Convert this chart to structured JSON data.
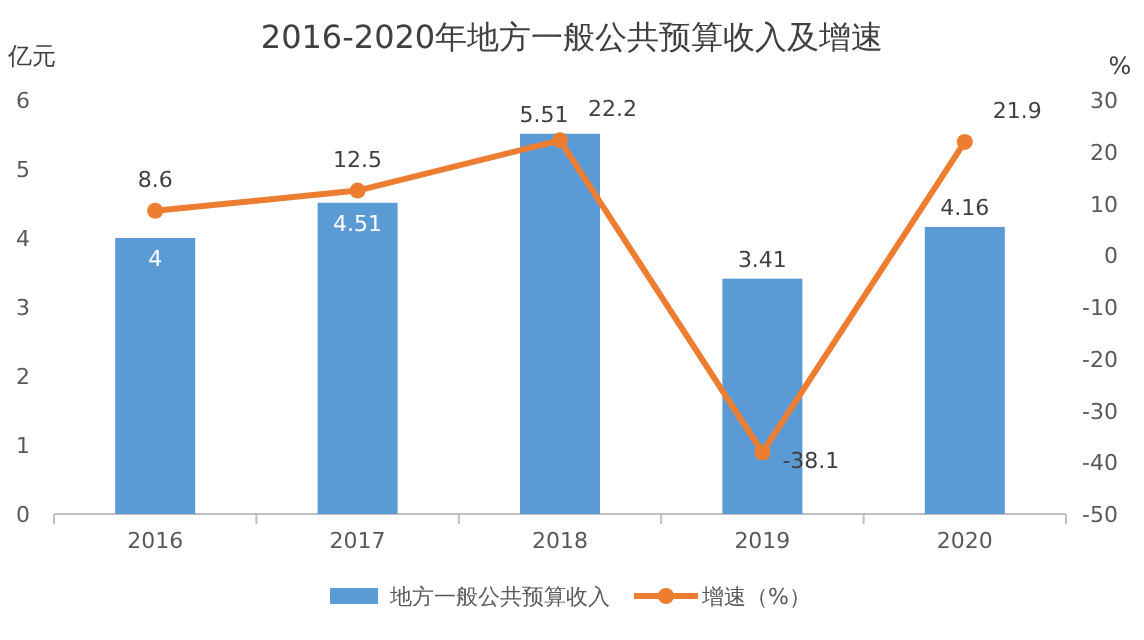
{
  "chart_data": {
    "type": "bar",
    "title": "2016-2020年地方一般公共预算收入及增速",
    "ylabel": "亿元",
    "y2label": "%",
    "categories": [
      "2016",
      "2017",
      "2018",
      "2019",
      "2020"
    ],
    "series": [
      {
        "name": "地方一般公共预算收入",
        "color": "#5b9bd5",
        "values": [
          4,
          4.51,
          5.51,
          3.41,
          4.16
        ]
      },
      {
        "name": "增速（%）",
        "type": "line",
        "axis": "y2",
        "color": "#ed7d31",
        "marker": "circle",
        "values": [
          8.6,
          12.5,
          22.2,
          -38.1,
          21.9
        ]
      }
    ],
    "ylim": [
      0,
      6
    ],
    "yticks": [
      0,
      1,
      2,
      3,
      4,
      5,
      6
    ],
    "y2lim": [
      -50,
      30
    ],
    "y2ticks": [
      -50,
      -40,
      -30,
      -20,
      -10,
      0,
      10,
      20,
      30
    ],
    "data_labels": true,
    "legend": "bottom",
    "grid": false
  }
}
